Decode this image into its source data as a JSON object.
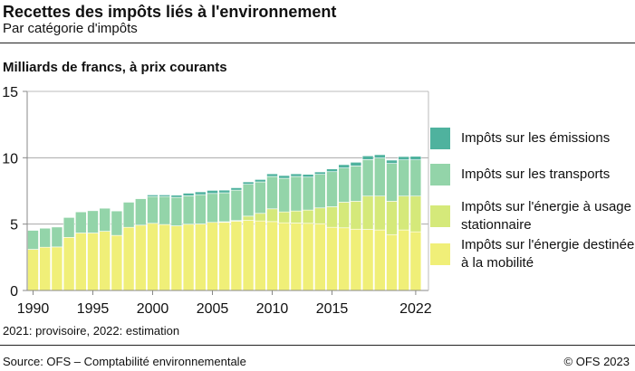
{
  "header": {
    "title": "Recettes des impôts liés à l'environnement",
    "subtitle": "Par catégorie d'impôts"
  },
  "footer": {
    "note": "2021: provisoire, 2022: estimation",
    "source": "Source: OFS – Comptabilité environnementale",
    "copyright": "© OFS 2023"
  },
  "chart_data": {
    "type": "bar",
    "stacked": true,
    "title": "Recettes des impôts liés à l'environnement",
    "subtitle": "Par catégorie d'impôts",
    "ylabel": "Milliards de francs, à prix courants",
    "xlabel": "",
    "ylim": [
      0,
      15
    ],
    "yticks": [
      0,
      5,
      10,
      15
    ],
    "xticks": [
      "1990",
      "1995",
      "2000",
      "2005",
      "2010",
      "2015",
      "2022"
    ],
    "grid": true,
    "legend_position": "right",
    "categories": [
      "1990",
      "1991",
      "1992",
      "1993",
      "1994",
      "1995",
      "1996",
      "1997",
      "1998",
      "1999",
      "2000",
      "2001",
      "2002",
      "2003",
      "2004",
      "2005",
      "2006",
      "2007",
      "2008",
      "2009",
      "2010",
      "2011",
      "2012",
      "2013",
      "2014",
      "2015",
      "2016",
      "2017",
      "2018",
      "2019",
      "2020",
      "2021",
      "2022"
    ],
    "series": [
      {
        "name": "Impôts sur l'énergie destinée à la mobilité",
        "color": "#f0ef78",
        "values": [
          3.1,
          3.26,
          3.28,
          4.0,
          4.33,
          4.33,
          4.46,
          4.15,
          4.76,
          4.92,
          5.06,
          4.97,
          4.87,
          4.99,
          5.01,
          5.13,
          5.13,
          5.22,
          5.28,
          5.24,
          5.19,
          5.1,
          5.08,
          5.06,
          5.03,
          4.76,
          4.72,
          4.62,
          4.6,
          4.56,
          4.21,
          4.56,
          4.42
        ]
      },
      {
        "name": "Impôts sur l'énergie à usage stationnaire",
        "color": "#d5e97a",
        "values": [
          0,
          0,
          0,
          0,
          0,
          0,
          0,
          0,
          0,
          0,
          0,
          0,
          0,
          0,
          0,
          0,
          0.05,
          0.05,
          0.32,
          0.57,
          0.96,
          0.82,
          0.91,
          1.0,
          1.19,
          1.55,
          1.93,
          2.1,
          2.51,
          2.55,
          2.51,
          2.55,
          2.69
        ]
      },
      {
        "name": "Impôts sur les transports",
        "color": "#93d4a9",
        "values": [
          1.43,
          1.43,
          1.5,
          1.5,
          1.59,
          1.68,
          1.74,
          1.84,
          1.89,
          2.0,
          2.02,
          2.11,
          2.15,
          2.14,
          2.21,
          2.18,
          2.18,
          2.29,
          2.4,
          2.37,
          2.44,
          2.53,
          2.6,
          2.48,
          2.53,
          2.64,
          2.58,
          2.66,
          2.75,
          2.87,
          2.85,
          2.73,
          2.73
        ]
      },
      {
        "name": "Impôts sur les émissions",
        "color": "#4fb29e",
        "values": [
          0,
          0,
          0,
          0,
          0,
          0,
          0.03,
          0,
          0,
          0.03,
          0.12,
          0.12,
          0.16,
          0.2,
          0.21,
          0.23,
          0.2,
          0.18,
          0.18,
          0.18,
          0.2,
          0.21,
          0.2,
          0.21,
          0.18,
          0.21,
          0.25,
          0.28,
          0.28,
          0.25,
          0.25,
          0.25,
          0.27
        ]
      }
    ],
    "legend": [
      {
        "label": "Impôts sur les émissions",
        "color": "#4fb29e"
      },
      {
        "label": "Impôts sur les transports",
        "color": "#93d4a9"
      },
      {
        "label": "Impôts sur l'énergie à usage stationnaire",
        "color": "#d5e97a"
      },
      {
        "label": "Impôts sur l'énergie destinée à la mobilité",
        "color": "#f0ef78"
      }
    ]
  }
}
